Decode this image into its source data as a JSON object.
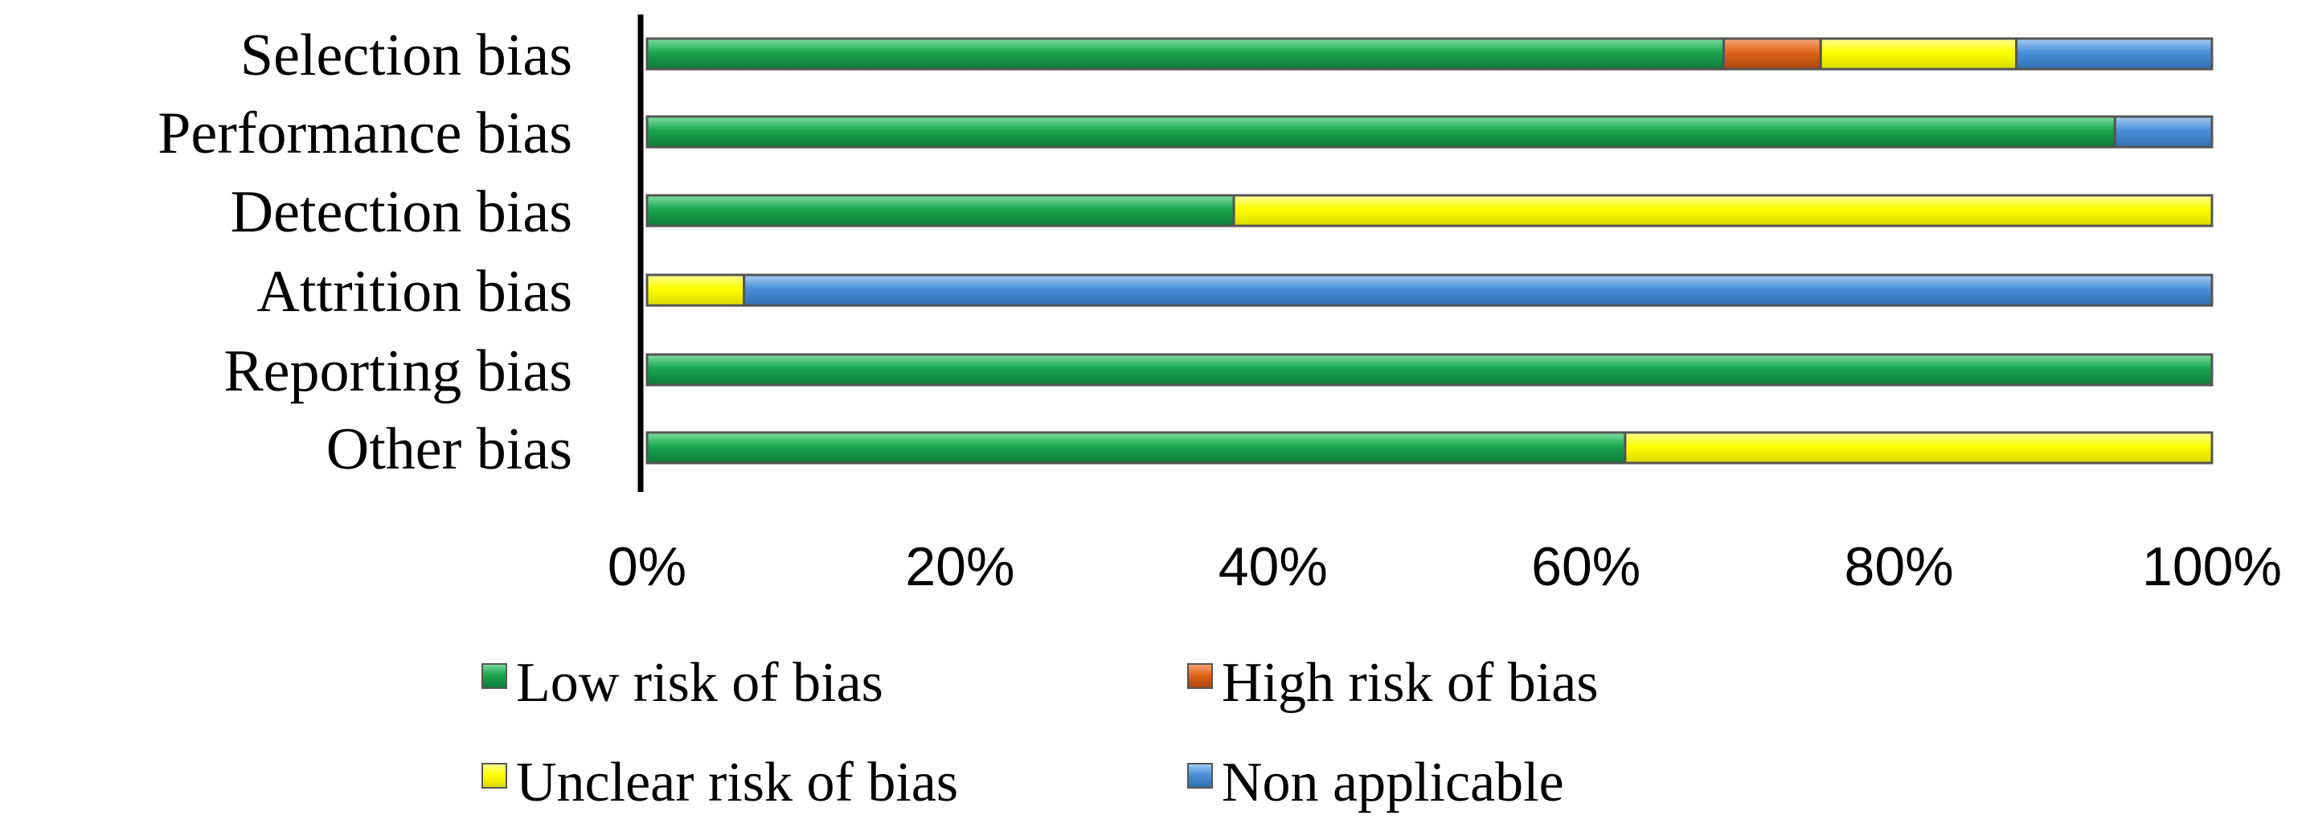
{
  "chart_data": {
    "type": "bar",
    "orientation": "horizontal",
    "stacked": "percent",
    "title": "",
    "xlabel": "",
    "ylabel": "",
    "xlim": [
      0,
      100
    ],
    "x_ticks": [
      "0%",
      "20%",
      "40%",
      "60%",
      "80%",
      "100%"
    ],
    "grid": false,
    "legend_position": "bottom",
    "categories": [
      "Selection bias",
      "Performance bias",
      "Detection bias",
      "Attrition bias",
      "Reporting bias",
      "Other bias"
    ],
    "series": [
      {
        "name": "Low risk of bias",
        "color": "#1BA650",
        "values": [
          68.8,
          93.8,
          37.5,
          0,
          100,
          62.5
        ]
      },
      {
        "name": "High risk of bias",
        "color": "#E0661A",
        "values": [
          6.2,
          0,
          0,
          0,
          0,
          0
        ]
      },
      {
        "name": "Unclear risk of bias",
        "color": "#FFFF00",
        "values": [
          12.5,
          0,
          62.5,
          6.2,
          0,
          37.5
        ]
      },
      {
        "name": "Non applicable",
        "color": "#4A90D9",
        "values": [
          12.5,
          6.2,
          0,
          93.8,
          0,
          0
        ]
      }
    ]
  }
}
